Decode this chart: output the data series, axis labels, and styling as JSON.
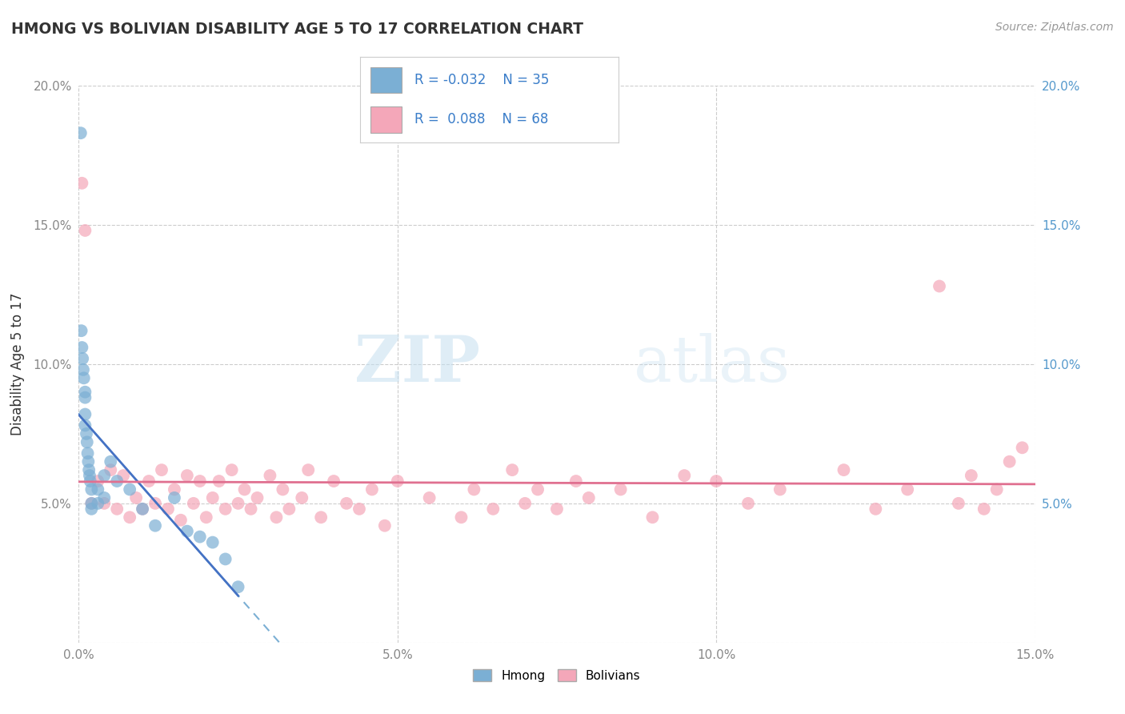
{
  "title": "HMONG VS BOLIVIAN DISABILITY AGE 5 TO 17 CORRELATION CHART",
  "source": "Source: ZipAtlas.com",
  "ylabel": "Disability Age 5 to 17",
  "xlim": [
    0.0,
    0.15
  ],
  "ylim": [
    0.0,
    0.2
  ],
  "xticks": [
    0.0,
    0.05,
    0.1,
    0.15
  ],
  "yticks": [
    0.0,
    0.05,
    0.1,
    0.15,
    0.2
  ],
  "xticklabels": [
    "0.0%",
    "5.0%",
    "10.0%",
    "15.0%"
  ],
  "yticklabels_left": [
    "",
    "5.0%",
    "10.0%",
    "15.0%",
    "20.0%"
  ],
  "yticklabels_right": [
    "",
    "5.0%",
    "10.0%",
    "15.0%",
    "20.0%"
  ],
  "hmong_color": "#7bafd4",
  "bolivian_color": "#f4a7b9",
  "hmong_R": -0.032,
  "hmong_N": 35,
  "bolivian_R": 0.088,
  "bolivian_N": 68,
  "legend_R_color": "#3a7dc9",
  "background_color": "#ffffff",
  "watermark_zip": "ZIP",
  "watermark_atlas": "atlas",
  "grid_color": "#cccccc",
  "tick_color": "#888888",
  "title_color": "#333333",
  "right_tick_color": "#5599cc",
  "hmong_x": [
    0.0003,
    0.0004,
    0.0005,
    0.0006,
    0.0007,
    0.0008,
    0.001,
    0.001,
    0.001,
    0.001,
    0.0012,
    0.0013,
    0.0014,
    0.0015,
    0.0016,
    0.0017,
    0.0018,
    0.002,
    0.002,
    0.002,
    0.003,
    0.003,
    0.004,
    0.004,
    0.005,
    0.006,
    0.008,
    0.01,
    0.012,
    0.015,
    0.017,
    0.019,
    0.021,
    0.023,
    0.025
  ],
  "hmong_y": [
    0.183,
    0.112,
    0.106,
    0.102,
    0.098,
    0.095,
    0.09,
    0.088,
    0.082,
    0.078,
    0.075,
    0.072,
    0.068,
    0.065,
    0.062,
    0.06,
    0.058,
    0.055,
    0.05,
    0.048,
    0.055,
    0.05,
    0.06,
    0.052,
    0.065,
    0.058,
    0.055,
    0.048,
    0.042,
    0.052,
    0.04,
    0.038,
    0.036,
    0.03,
    0.02
  ],
  "bolivian_x": [
    0.0005,
    0.001,
    0.002,
    0.003,
    0.004,
    0.005,
    0.006,
    0.007,
    0.008,
    0.009,
    0.01,
    0.011,
    0.012,
    0.013,
    0.014,
    0.015,
    0.016,
    0.017,
    0.018,
    0.019,
    0.02,
    0.021,
    0.022,
    0.023,
    0.024,
    0.025,
    0.026,
    0.027,
    0.028,
    0.03,
    0.031,
    0.032,
    0.033,
    0.035,
    0.036,
    0.038,
    0.04,
    0.042,
    0.044,
    0.046,
    0.048,
    0.05,
    0.055,
    0.06,
    0.062,
    0.065,
    0.068,
    0.07,
    0.072,
    0.075,
    0.078,
    0.08,
    0.085,
    0.09,
    0.095,
    0.1,
    0.105,
    0.11,
    0.12,
    0.125,
    0.13,
    0.135,
    0.138,
    0.14,
    0.142,
    0.144,
    0.146,
    0.148
  ],
  "bolivian_y": [
    0.165,
    0.148,
    0.05,
    0.058,
    0.05,
    0.062,
    0.048,
    0.06,
    0.045,
    0.052,
    0.048,
    0.058,
    0.05,
    0.062,
    0.048,
    0.055,
    0.044,
    0.06,
    0.05,
    0.058,
    0.045,
    0.052,
    0.058,
    0.048,
    0.062,
    0.05,
    0.055,
    0.048,
    0.052,
    0.06,
    0.045,
    0.055,
    0.048,
    0.052,
    0.062,
    0.045,
    0.058,
    0.05,
    0.048,
    0.055,
    0.042,
    0.058,
    0.052,
    0.045,
    0.055,
    0.048,
    0.062,
    0.05,
    0.055,
    0.048,
    0.058,
    0.052,
    0.055,
    0.045,
    0.06,
    0.058,
    0.05,
    0.055,
    0.062,
    0.048,
    0.055,
    0.128,
    0.05,
    0.06,
    0.048,
    0.055,
    0.065,
    0.07
  ]
}
